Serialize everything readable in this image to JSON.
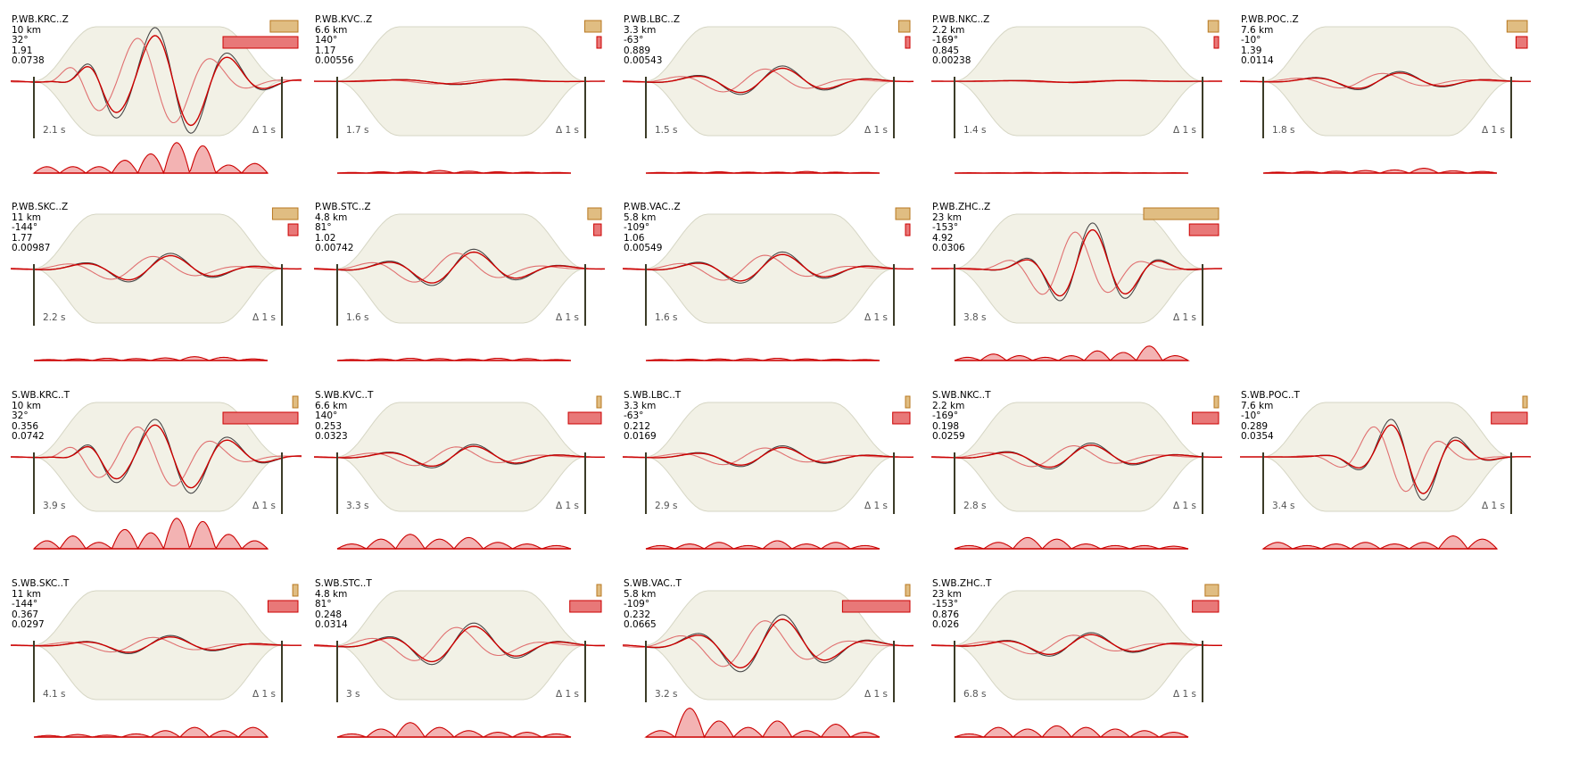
{
  "panels": [
    {
      "row": 0,
      "col": 0,
      "station": "P.WB.KRC..Z",
      "dist": "10 km",
      "azi": "32°",
      "max1": "1.91",
      "max2": "0.0738",
      "t": "2.1 s",
      "d": "Δ 1 s",
      "amp": 2.0,
      "w1": 0.37,
      "w2": 1.0,
      "pattern": "big",
      "misfit": [
        0.2,
        0.2,
        0.2,
        0.4,
        0.6,
        0.95,
        0.85,
        0.25,
        0.3
      ]
    },
    {
      "row": 0,
      "col": 1,
      "station": "P.WB.KVC..Z",
      "dist": "6.6 km",
      "azi": "140°",
      "max1": "1.17",
      "max2": "0.00556",
      "t": "1.7 s",
      "d": "Δ 1 s",
      "amp": 0.12,
      "w1": 0.22,
      "w2": 0.03,
      "pattern": "small",
      "misfit": [
        0.02,
        0.04,
        0.05,
        0.08,
        0.06,
        0.04,
        0.03,
        0.02
      ]
    },
    {
      "row": 0,
      "col": 2,
      "station": "P.WB.LBC..Z",
      "dist": "3.3 km",
      "azi": "-63°",
      "max1": "0.889",
      "max2": "0.00543",
      "t": "1.5 s",
      "d": "Δ 1 s",
      "amp": 0.55,
      "w1": 0.15,
      "w2": 0.03,
      "pattern": "mid",
      "misfit": [
        0.02,
        0.03,
        0.04,
        0.03,
        0.03,
        0.05,
        0.03,
        0.02
      ]
    },
    {
      "row": 0,
      "col": 3,
      "station": "P.WB.NKC..Z",
      "dist": "2.2 km",
      "azi": "-169°",
      "max1": "0.845",
      "max2": "0.00238",
      "t": "1.4 s",
      "d": "Δ 1 s",
      "amp": 0.05,
      "w1": 0.14,
      "w2": 0.02,
      "pattern": "small",
      "misfit": [
        0.01,
        0.01,
        0.02,
        0.02,
        0.01,
        0.02,
        0.01,
        0.01
      ]
    },
    {
      "row": 0,
      "col": 4,
      "station": "P.WB.POC..Z",
      "dist": "7.6 km",
      "azi": "-10°",
      "max1": "1.39",
      "max2": "0.0114",
      "t": "1.8 s",
      "d": "Δ 1 s",
      "amp": 0.35,
      "w1": 0.27,
      "w2": 0.15,
      "pattern": "mid",
      "misfit": [
        0.03,
        0.05,
        0.06,
        0.08,
        0.1,
        0.15,
        0.07,
        0.05
      ]
    },
    {
      "row": 1,
      "col": 0,
      "station": "P.WB.SKC..Z",
      "dist": "11 km",
      "azi": "-144°",
      "max1": "1.77",
      "max2": "0.00987",
      "t": "2.2 s",
      "d": "Δ 1 s",
      "amp": 0.55,
      "w1": 0.34,
      "w2": 0.13,
      "pattern": "mid",
      "misfit": [
        0.03,
        0.05,
        0.07,
        0.06,
        0.08,
        0.12,
        0.1,
        0.05
      ]
    },
    {
      "row": 1,
      "col": 1,
      "station": "P.WB.STC..Z",
      "dist": "4.8 km",
      "azi": "81°",
      "max1": "1.02",
      "max2": "0.00742",
      "t": "1.6 s",
      "d": "Δ 1 s",
      "amp": 0.7,
      "w1": 0.18,
      "w2": 0.1,
      "pattern": "mid",
      "misfit": [
        0.03,
        0.05,
        0.07,
        0.06,
        0.05,
        0.07,
        0.06,
        0.03
      ]
    },
    {
      "row": 1,
      "col": 2,
      "station": "P.WB.VAC..Z",
      "dist": "5.8 km",
      "azi": "-109°",
      "max1": "1.06",
      "max2": "0.00549",
      "t": "1.6 s",
      "d": "Δ 1 s",
      "amp": 0.6,
      "w1": 0.19,
      "w2": 0.04,
      "pattern": "mid",
      "misfit": [
        0.03,
        0.04,
        0.05,
        0.06,
        0.07,
        0.05,
        0.04,
        0.03
      ]
    },
    {
      "row": 1,
      "col": 3,
      "station": "P.WB.ZHC..Z",
      "dist": "23 km",
      "azi": "-153°",
      "max1": "4.92",
      "max2": "0.0306",
      "t": "3.8 s",
      "d": "Δ 1 s",
      "amp": 1.6,
      "w1": 1.0,
      "w2": 0.39,
      "pattern": "zhc",
      "misfit": [
        0.1,
        0.2,
        0.15,
        0.1,
        0.15,
        0.3,
        0.25,
        0.45,
        0.15
      ]
    },
    {
      "row": 2,
      "col": 0,
      "station": "S.WB.KRC..T",
      "dist": "10 km",
      "azi": "32°",
      "max1": "0.356",
      "max2": "0.0742",
      "t": "3.9 s",
      "d": "Δ 1 s",
      "amp": 1.4,
      "w1": 0.07,
      "w2": 1.0,
      "pattern": "big",
      "misfit": [
        0.25,
        0.4,
        0.2,
        0.6,
        0.5,
        0.95,
        0.85,
        0.45,
        0.25
      ]
    },
    {
      "row": 2,
      "col": 1,
      "station": "S.WB.KVC..T",
      "dist": "6.6 km",
      "azi": "140°",
      "max1": "0.253",
      "max2": "0.0323",
      "t": "3.3 s",
      "d": "Δ 1 s",
      "amp": 0.45,
      "w1": 0.05,
      "w2": 0.44,
      "pattern": "mid",
      "misfit": [
        0.15,
        0.3,
        0.45,
        0.3,
        0.35,
        0.2,
        0.15,
        0.1
      ]
    },
    {
      "row": 2,
      "col": 2,
      "station": "S.WB.LBC..T",
      "dist": "3.3 km",
      "azi": "-63°",
      "max1": "0.212",
      "max2": "0.0169",
      "t": "2.9 s",
      "d": "Δ 1 s",
      "amp": 0.4,
      "w1": 0.04,
      "w2": 0.23,
      "pattern": "mid",
      "misfit": [
        0.1,
        0.15,
        0.2,
        0.1,
        0.25,
        0.15,
        0.2,
        0.1
      ]
    },
    {
      "row": 2,
      "col": 3,
      "station": "S.WB.NKC..T",
      "dist": "2.2 km",
      "azi": "-169°",
      "max1": "0.198",
      "max2": "0.0259",
      "t": "2.8 s",
      "d": "Δ 1 s",
      "amp": 0.5,
      "w1": 0.04,
      "w2": 0.35,
      "pattern": "mid",
      "misfit": [
        0.1,
        0.2,
        0.35,
        0.3,
        0.15,
        0.1,
        0.1,
        0.08
      ]
    },
    {
      "row": 2,
      "col": 4,
      "station": "S.WB.POC..T",
      "dist": "7.6 km",
      "azi": "-10°",
      "max1": "0.289",
      "max2": "0.0354",
      "t": "3.4 s",
      "d": "Δ 1 s",
      "amp": 1.6,
      "w1": 0.05,
      "w2": 0.48,
      "pattern": "poc",
      "misfit": [
        0.2,
        0.1,
        0.15,
        0.2,
        0.15,
        0.2,
        0.4,
        0.3
      ]
    },
    {
      "row": 3,
      "col": 0,
      "station": "S.WB.SKC..T",
      "dist": "11 km",
      "azi": "-144°",
      "max1": "0.367",
      "max2": "0.0297",
      "t": "4.1 s",
      "d": "Δ 1 s",
      "amp": 0.35,
      "w1": 0.07,
      "w2": 0.4,
      "pattern": "mid",
      "misfit": [
        0.05,
        0.08,
        0.06,
        0.1,
        0.2,
        0.3,
        0.2,
        0.3
      ]
    },
    {
      "row": 3,
      "col": 1,
      "station": "S.WB.STC..T",
      "dist": "4.8 km",
      "azi": "81°",
      "max1": "0.248",
      "max2": "0.0314",
      "t": "3 s",
      "d": "Δ 1 s",
      "amp": 0.8,
      "w1": 0.05,
      "w2": 0.42,
      "pattern": "mid",
      "misfit": [
        0.1,
        0.25,
        0.45,
        0.3,
        0.2,
        0.15,
        0.15,
        0.1
      ]
    },
    {
      "row": 3,
      "col": 2,
      "station": "S.WB.VAC..T",
      "dist": "5.8 km",
      "azi": "-109°",
      "max1": "0.232",
      "max2": "0.0665",
      "t": "3.2 s",
      "d": "Δ 1 s",
      "amp": 1.1,
      "w1": 0.05,
      "w2": 0.9,
      "pattern": "mid",
      "misfit": [
        0.2,
        0.9,
        0.5,
        0.3,
        0.5,
        0.2,
        0.4,
        0.15
      ]
    },
    {
      "row": 3,
      "col": 3,
      "station": "S.WB.ZHC..T",
      "dist": "23 km",
      "azi": "-153°",
      "max1": "0.876",
      "max2": "0.026",
      "t": "6.8 s",
      "d": "Δ 1 s",
      "amp": 0.45,
      "w1": 0.18,
      "w2": 0.35,
      "pattern": "mid",
      "misfit": [
        0.1,
        0.3,
        0.25,
        0.35,
        0.3,
        0.25,
        0.2,
        0.15
      ]
    }
  ],
  "colors": {
    "taper": "#f2f1e6",
    "taper_edge": "#d6d6c4",
    "observed": "#444444",
    "observed_light": "#aaaaaa",
    "synthetic": "#cc0000",
    "synthetic_light": "#e07070",
    "misfit_fill": "#f3b3b3",
    "weight1_fill": "#e0bd82",
    "weight1_edge": "#b87820",
    "weight2_fill": "#e87878",
    "weight2_edge": "#cc0000",
    "marker": "#3c3c28",
    "time_label": "#555555"
  }
}
